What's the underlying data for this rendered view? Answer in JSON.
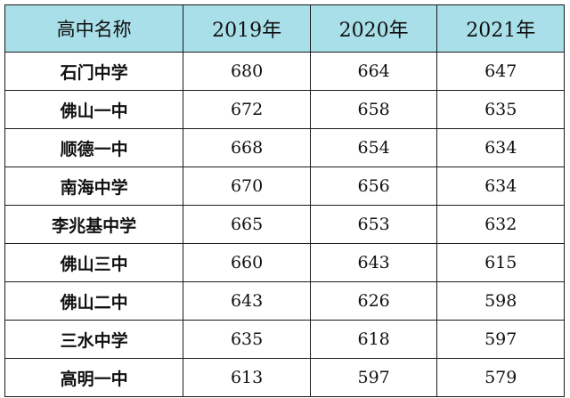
{
  "table": {
    "header_color": "#a8dfe8",
    "headers": {
      "name": "高中名称",
      "y2019": "2019年",
      "y2020": "2020年",
      "y2021": "2021年"
    },
    "rows": [
      {
        "name": "石门中学",
        "y2019": "680",
        "y2020": "664",
        "y2021": "647"
      },
      {
        "name": "佛山一中",
        "y2019": "672",
        "y2020": "658",
        "y2021": "635"
      },
      {
        "name": "顺德一中",
        "y2019": "668",
        "y2020": "654",
        "y2021": "634"
      },
      {
        "name": "南海中学",
        "y2019": "670",
        "y2020": "656",
        "y2021": "634"
      },
      {
        "name": "李兆基中学",
        "y2019": "665",
        "y2020": "653",
        "y2021": "632"
      },
      {
        "name": "佛山三中",
        "y2019": "660",
        "y2020": "643",
        "y2021": "615"
      },
      {
        "name": "佛山二中",
        "y2019": "643",
        "y2020": "626",
        "y2021": "598"
      },
      {
        "name": "三水中学",
        "y2019": "635",
        "y2020": "618",
        "y2021": "597"
      },
      {
        "name": "高明一中",
        "y2019": "613",
        "y2020": "597",
        "y2021": "579"
      }
    ]
  }
}
